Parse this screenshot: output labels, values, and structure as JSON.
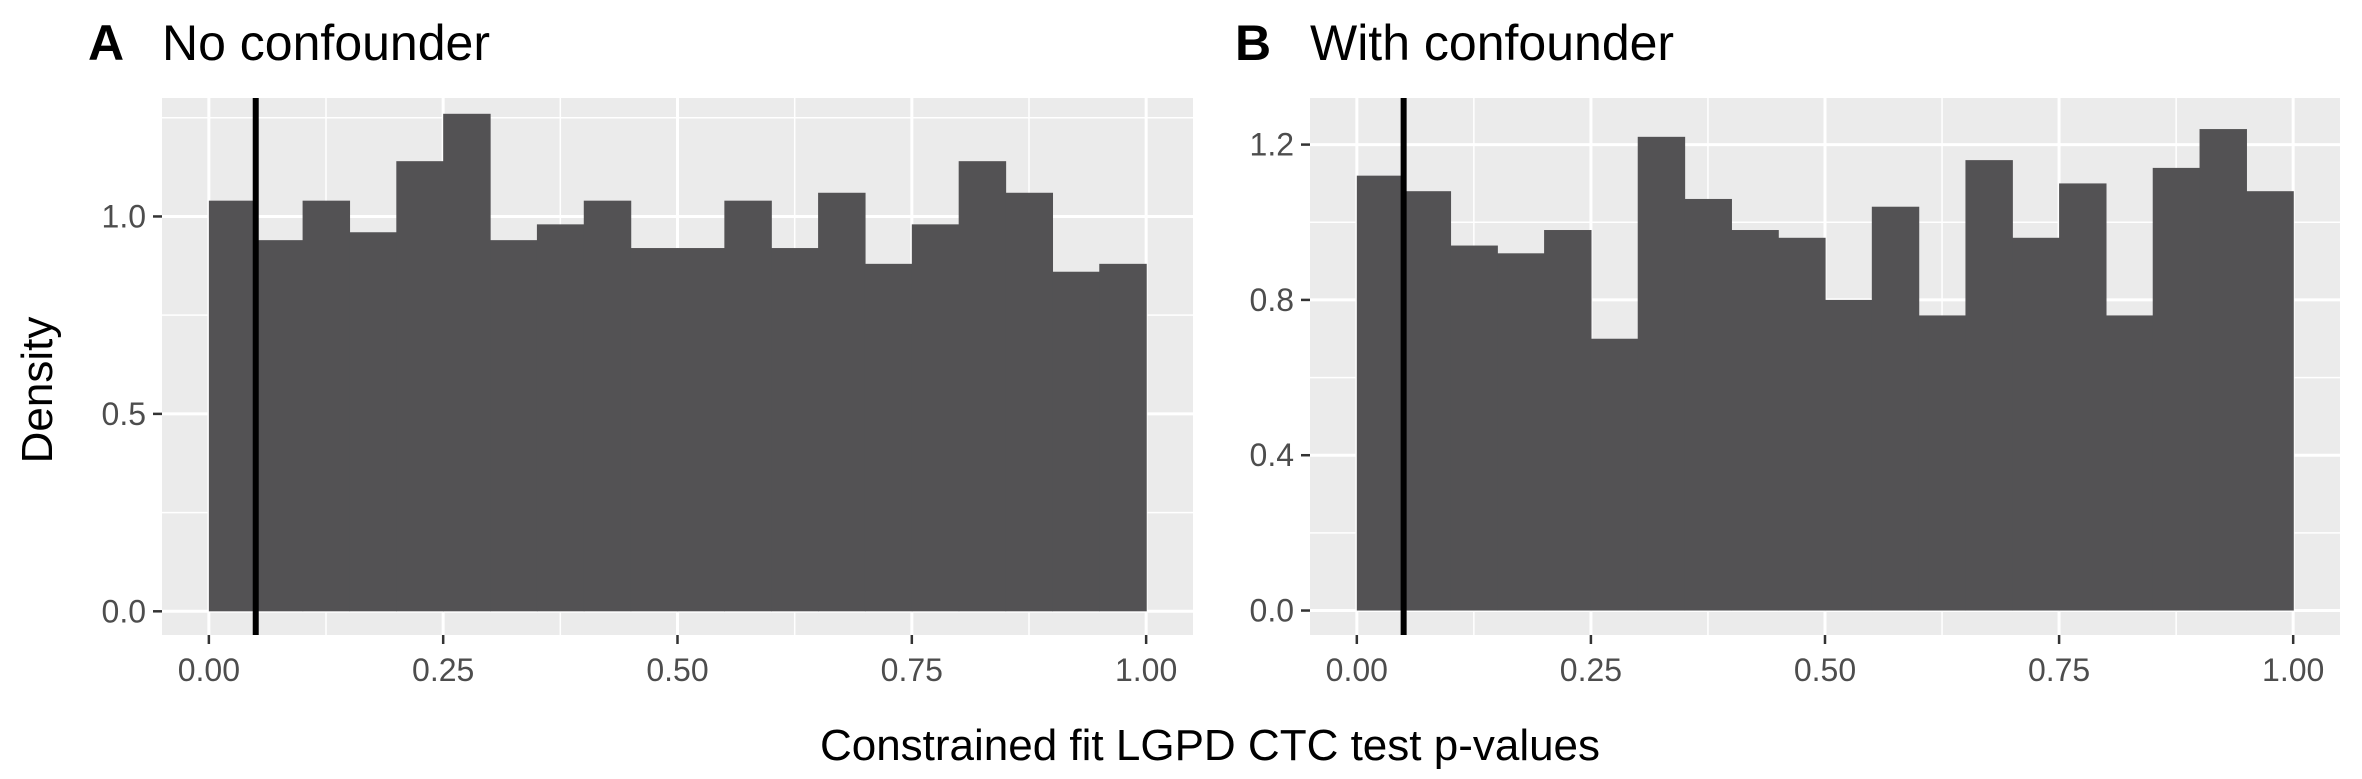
{
  "xlabel": "Constrained fit LGPD CTC test p-values",
  "ylabel": "Density",
  "chart_data": [
    {
      "type": "bar",
      "panel": "A",
      "title": "No confounder",
      "bin_width": 0.05,
      "x_start": 0.0,
      "xlim": [
        -0.05,
        1.05
      ],
      "ylim": [
        -0.06,
        1.3
      ],
      "x_ticks": [
        0.0,
        0.25,
        0.5,
        0.75,
        1.0
      ],
      "x_tick_labels": [
        "0.00",
        "0.25",
        "0.50",
        "0.75",
        "1.00"
      ],
      "y_ticks": [
        0.0,
        0.5,
        1.0
      ],
      "y_tick_labels": [
        "0.0",
        "0.5",
        "1.0"
      ],
      "values": [
        1.04,
        0.94,
        1.04,
        0.96,
        1.14,
        1.26,
        0.94,
        0.98,
        1.04,
        0.92,
        0.92,
        1.04,
        0.92,
        1.06,
        0.88,
        0.98,
        1.14,
        1.06,
        0.86,
        0.88
      ],
      "vline": 0.05,
      "grid": true,
      "bar_color": "#535254",
      "panel_background": "#ebebeb"
    },
    {
      "type": "bar",
      "panel": "B",
      "title": "With confounder",
      "bin_width": 0.05,
      "x_start": 0.0,
      "xlim": [
        -0.05,
        1.05
      ],
      "ylim": [
        -0.063,
        1.32
      ],
      "x_ticks": [
        0.0,
        0.25,
        0.5,
        0.75,
        1.0
      ],
      "x_tick_labels": [
        "0.00",
        "0.25",
        "0.50",
        "0.75",
        "1.00"
      ],
      "y_ticks": [
        0.0,
        0.4,
        0.8,
        1.2
      ],
      "y_tick_labels": [
        "0.0",
        "0.4",
        "0.8",
        "1.2"
      ],
      "values": [
        1.12,
        1.08,
        0.94,
        0.92,
        0.98,
        0.7,
        1.22,
        1.06,
        0.98,
        0.96,
        0.8,
        1.04,
        0.76,
        1.16,
        0.96,
        1.1,
        0.76,
        1.14,
        1.24,
        1.08
      ],
      "vline": 0.05,
      "grid": true,
      "bar_color": "#535254",
      "panel_background": "#ebebeb"
    }
  ]
}
